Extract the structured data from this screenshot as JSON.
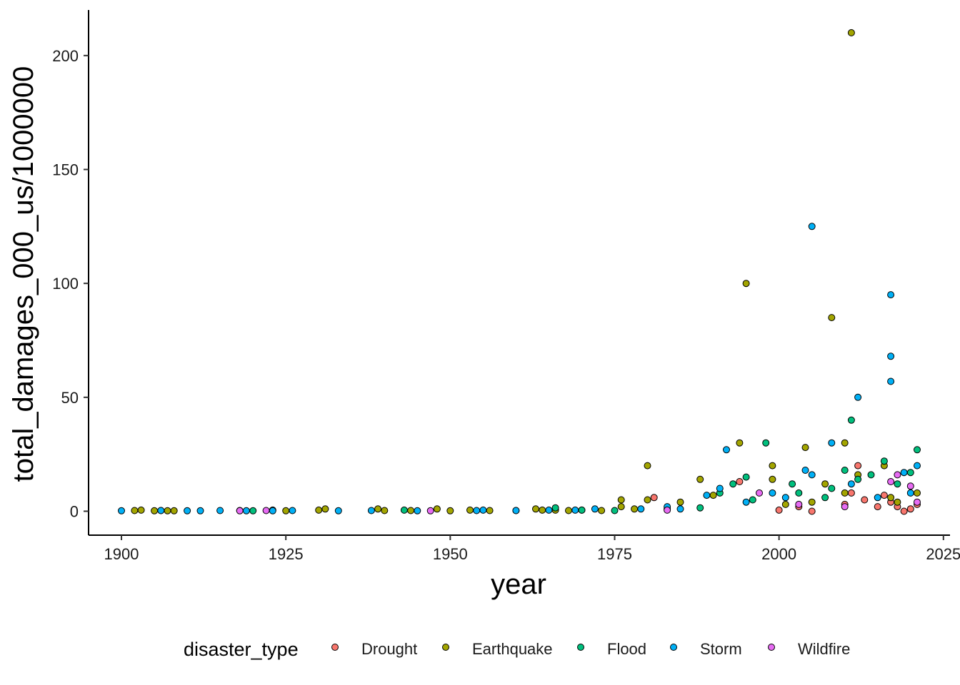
{
  "chart_data": {
    "type": "scatter",
    "xlabel": "year",
    "ylabel": "total_damages_000_us/1000000",
    "xlim": [
      1895,
      2026
    ],
    "ylim": [
      -10.5,
      220
    ],
    "xticks": [
      1900,
      1925,
      1950,
      1975,
      2000,
      2025
    ],
    "yticks": [
      0,
      50,
      100,
      150,
      200
    ],
    "grid": false,
    "legend": {
      "title": "disaster_type",
      "position": "bottom"
    },
    "series": [
      {
        "name": "Drought",
        "color": "#F8766D",
        "points": [
          [
            1981,
            6
          ],
          [
            1983,
            1
          ],
          [
            1994,
            13
          ],
          [
            2000,
            0.5
          ],
          [
            2003,
            2
          ],
          [
            2005,
            0
          ],
          [
            2010,
            3
          ],
          [
            2011,
            8
          ],
          [
            2012,
            20
          ],
          [
            2013,
            5
          ],
          [
            2015,
            2
          ],
          [
            2016,
            7
          ],
          [
            2017,
            4
          ],
          [
            2018,
            2
          ],
          [
            2019,
            0
          ],
          [
            2020,
            1
          ],
          [
            2021,
            3
          ]
        ]
      },
      {
        "name": "Earthquake",
        "color": "#A3A500",
        "points": [
          [
            1902,
            0.3
          ],
          [
            1903,
            0.5
          ],
          [
            1905,
            0.2
          ],
          [
            1906,
            0.3
          ],
          [
            1907,
            0.2
          ],
          [
            1908,
            0.2
          ],
          [
            1923,
            0.5
          ],
          [
            1925,
            0.2
          ],
          [
            1930,
            0.5
          ],
          [
            1931,
            1
          ],
          [
            1939,
            1
          ],
          [
            1940,
            0.3
          ],
          [
            1944,
            0.3
          ],
          [
            1948,
            1
          ],
          [
            1950,
            0.2
          ],
          [
            1953,
            0.5
          ],
          [
            1956,
            0.3
          ],
          [
            1960,
            0.3
          ],
          [
            1963,
            1
          ],
          [
            1964,
            0.5
          ],
          [
            1966,
            0.5
          ],
          [
            1968,
            0.3
          ],
          [
            1970,
            0.5
          ],
          [
            1973,
            0.3
          ],
          [
            1976,
            5
          ],
          [
            1976,
            2
          ],
          [
            1978,
            1
          ],
          [
            1980,
            20
          ],
          [
            1980,
            5
          ],
          [
            1985,
            4
          ],
          [
            1988,
            14
          ],
          [
            1990,
            7
          ],
          [
            1994,
            30
          ],
          [
            1995,
            100
          ],
          [
            1999,
            20
          ],
          [
            1999,
            14
          ],
          [
            2001,
            3
          ],
          [
            2004,
            28
          ],
          [
            2005,
            4
          ],
          [
            2007,
            12
          ],
          [
            2008,
            85
          ],
          [
            2010,
            30
          ],
          [
            2010,
            8
          ],
          [
            2011,
            210
          ],
          [
            2012,
            16
          ],
          [
            2016,
            20
          ],
          [
            2017,
            6
          ],
          [
            2018,
            4
          ],
          [
            2021,
            8
          ]
        ]
      },
      {
        "name": "Flood",
        "color": "#00BF7D",
        "points": [
          [
            1918,
            0.3
          ],
          [
            1920,
            0.2
          ],
          [
            1943,
            0.5
          ],
          [
            1966,
            1.5
          ],
          [
            1970,
            0.5
          ],
          [
            1975,
            0.3
          ],
          [
            1988,
            1.5
          ],
          [
            1991,
            8
          ],
          [
            1993,
            12
          ],
          [
            1995,
            15
          ],
          [
            1996,
            5
          ],
          [
            1998,
            30
          ],
          [
            2002,
            12
          ],
          [
            2003,
            8
          ],
          [
            2007,
            6
          ],
          [
            2008,
            10
          ],
          [
            2010,
            18
          ],
          [
            2011,
            40
          ],
          [
            2012,
            14
          ],
          [
            2014,
            16
          ],
          [
            2016,
            22
          ],
          [
            2018,
            12
          ],
          [
            2020,
            17
          ],
          [
            2021,
            27
          ]
        ]
      },
      {
        "name": "Storm",
        "color": "#00B0F6",
        "points": [
          [
            1900,
            0.2
          ],
          [
            1906,
            0.3
          ],
          [
            1910,
            0.2
          ],
          [
            1912,
            0.2
          ],
          [
            1915,
            0.3
          ],
          [
            1919,
            0.2
          ],
          [
            1923,
            0.2
          ],
          [
            1926,
            0.3
          ],
          [
            1933,
            0.2
          ],
          [
            1938,
            0.3
          ],
          [
            1945,
            0.2
          ],
          [
            1954,
            0.3
          ],
          [
            1955,
            0.5
          ],
          [
            1960,
            0.3
          ],
          [
            1965,
            0.5
          ],
          [
            1969,
            0.5
          ],
          [
            1972,
            1
          ],
          [
            1979,
            1
          ],
          [
            1983,
            2
          ],
          [
            1985,
            1
          ],
          [
            1989,
            7
          ],
          [
            1991,
            10
          ],
          [
            1992,
            27
          ],
          [
            1995,
            4
          ],
          [
            1999,
            8
          ],
          [
            2001,
            6
          ],
          [
            2004,
            18
          ],
          [
            2005,
            125
          ],
          [
            2005,
            16
          ],
          [
            2008,
            30
          ],
          [
            2011,
            12
          ],
          [
            2012,
            50
          ],
          [
            2015,
            6
          ],
          [
            2017,
            95
          ],
          [
            2017,
            68
          ],
          [
            2017,
            57
          ],
          [
            2019,
            17
          ],
          [
            2020,
            8
          ],
          [
            2021,
            20
          ]
        ]
      },
      {
        "name": "Wildfire",
        "color": "#E76BF3",
        "points": [
          [
            1918,
            0.2
          ],
          [
            1922,
            0.3
          ],
          [
            1947,
            0.2
          ],
          [
            1983,
            0.5
          ],
          [
            1997,
            8
          ],
          [
            2003,
            3
          ],
          [
            2010,
            2
          ],
          [
            2017,
            13
          ],
          [
            2018,
            16
          ],
          [
            2020,
            11
          ],
          [
            2021,
            4
          ]
        ]
      }
    ]
  }
}
